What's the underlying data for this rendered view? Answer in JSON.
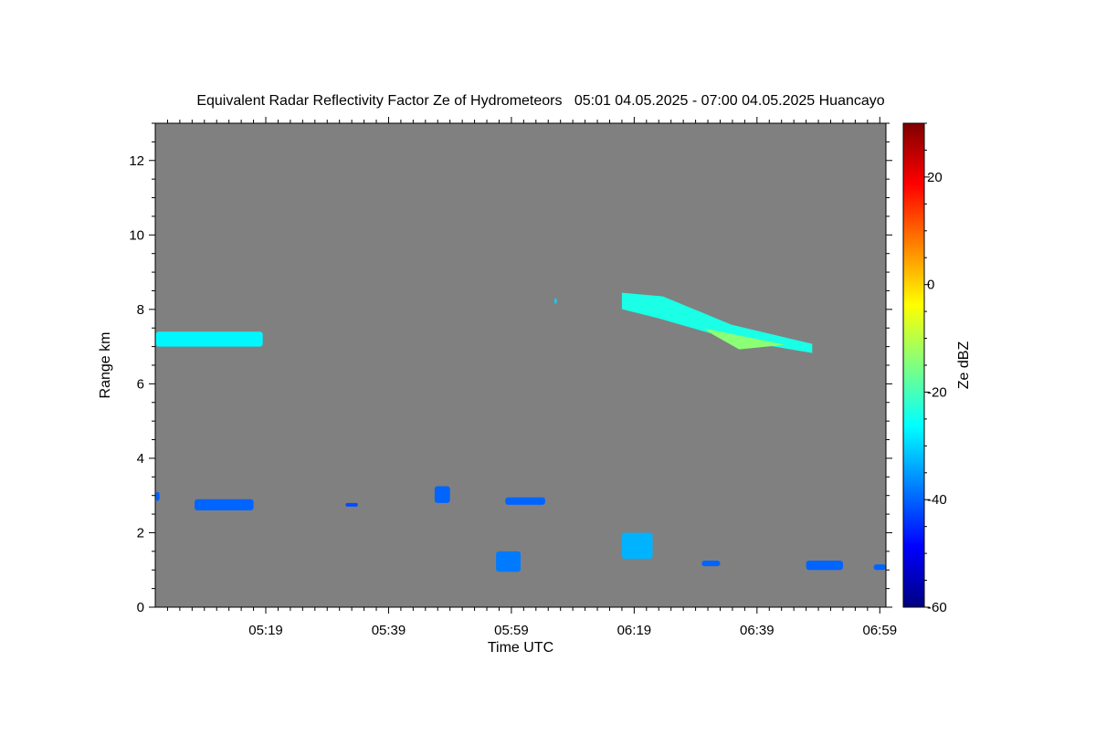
{
  "chart_data": {
    "type": "heatmap",
    "title": "Equivalent Radar Reflectivity Factor Ze of Hydrometeors   05:01 04.05.2025 - 07:00 04.05.2025 Huancayo",
    "xlabel": "Time UTC",
    "ylabel": "Range km",
    "x_unit": "minutes UTC",
    "xlim": [
      301,
      420
    ],
    "ylim": [
      0,
      13
    ],
    "x_ticks": [
      {
        "value": 319,
        "label": "05:19"
      },
      {
        "value": 339,
        "label": "05:39"
      },
      {
        "value": 359,
        "label": "05:59"
      },
      {
        "value": 379,
        "label": "06:19"
      },
      {
        "value": 399,
        "label": "06:39"
      },
      {
        "value": 419,
        "label": "06:59"
      }
    ],
    "y_ticks": [
      0,
      2,
      4,
      6,
      8,
      10,
      12
    ],
    "background_color": "#808080",
    "colorbar": {
      "label": "Ze dBZ",
      "range": [
        -60,
        30
      ],
      "ticks": [
        -60,
        -40,
        -20,
        0,
        20
      ],
      "colors": [
        "#000080",
        "#0000ff",
        "#0080ff",
        "#00ffff",
        "#80ff80",
        "#ffff00",
        "#ff8000",
        "#ff0000",
        "#800000"
      ]
    },
    "echoes": [
      {
        "name": "cirrus-layer-early",
        "t_start": 301.1,
        "t_end": 318.5,
        "range_km": [
          7.0,
          7.4
        ],
        "ze_dbz": -27
      },
      {
        "name": "cirrus-fallstreak",
        "t_start": 377.0,
        "t_end": 408.0,
        "range_km_start": 8.3,
        "range_km_end": 6.95,
        "ze_dbz": -24
      },
      {
        "name": "isolated-echo",
        "t_start": 366.0,
        "t_end": 366.4,
        "range_km": [
          8.15,
          8.3
        ],
        "ze_dbz": -30
      },
      {
        "name": "low-echo-1",
        "t_start": 301.1,
        "t_end": 301.7,
        "range_km": [
          2.85,
          3.1
        ],
        "ze_dbz": -40
      },
      {
        "name": "low-echo-2",
        "t_start": 307.4,
        "t_end": 317.0,
        "range_km": [
          2.6,
          2.9
        ],
        "ze_dbz": -40
      },
      {
        "name": "low-echo-3",
        "t_start": 332.0,
        "t_end": 334.0,
        "range_km": [
          2.7,
          2.8
        ],
        "ze_dbz": -42
      },
      {
        "name": "low-echo-4",
        "t_start": 346.5,
        "t_end": 349.0,
        "range_km": [
          2.8,
          3.25
        ],
        "ze_dbz": -40
      },
      {
        "name": "low-echo-5",
        "t_start": 358.0,
        "t_end": 364.5,
        "range_km": [
          2.75,
          2.95
        ],
        "ze_dbz": -40
      },
      {
        "name": "low-echo-6",
        "t_start": 356.5,
        "t_end": 360.5,
        "range_km": [
          0.95,
          1.5
        ],
        "ze_dbz": -38
      },
      {
        "name": "low-echo-7",
        "t_start": 377.0,
        "t_end": 382.0,
        "range_km": [
          1.3,
          2.0
        ],
        "ze_dbz": -33
      },
      {
        "name": "low-echo-8",
        "t_start": 390.0,
        "t_end": 393.0,
        "range_km": [
          1.1,
          1.25
        ],
        "ze_dbz": -40
      },
      {
        "name": "low-echo-9",
        "t_start": 407.0,
        "t_end": 413.0,
        "range_km": [
          1.0,
          1.25
        ],
        "ze_dbz": -40
      },
      {
        "name": "low-echo-10",
        "t_start": 418.0,
        "t_end": 420.0,
        "range_km": [
          1.0,
          1.15
        ],
        "ze_dbz": -40
      }
    ]
  }
}
